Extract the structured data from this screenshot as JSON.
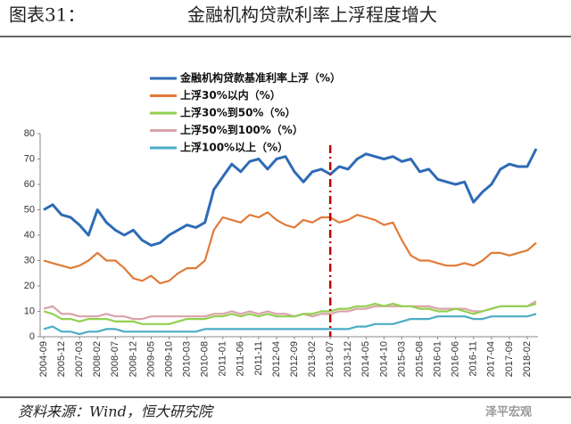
{
  "header": {
    "label": "图表31：",
    "title": "金融机构贷款利率上浮程度增大"
  },
  "footer": {
    "source": "资料来源：Wind，恒大研究院",
    "watermark": "泽平宏观"
  },
  "chart_data": {
    "type": "line",
    "categories": [
      "2004-09",
      null,
      "2005-12",
      null,
      "2007-03",
      null,
      "2008-02",
      null,
      "2008-07",
      null,
      "2008-12",
      null,
      "2009-05",
      null,
      "2009-10",
      null,
      "2010-03",
      null,
      "2010-08",
      null,
      "2011-01",
      null,
      "2011-06",
      null,
      "2011-11",
      null,
      "2012-04",
      null,
      "2012-09",
      null,
      "2013-02",
      null,
      "2013-07",
      null,
      "2013-12",
      null,
      "2014-05",
      null,
      "2014-10",
      null,
      "2015-03",
      null,
      "2015-08",
      null,
      "2016-01",
      null,
      "2016-06",
      null,
      "2016-11",
      null,
      "2017-04",
      null,
      "2017-09",
      null,
      "2018-02",
      null
    ],
    "series": [
      {
        "name": "金融机构贷款基准利率上浮（%）",
        "color": "#2e6bb5",
        "values": [
          50,
          52,
          48,
          47,
          44,
          40,
          50,
          45,
          42,
          40,
          42,
          38,
          36,
          37,
          40,
          42,
          44,
          43,
          45,
          58,
          63,
          68,
          65,
          69,
          70,
          66,
          70,
          71,
          65,
          61,
          65,
          66,
          64,
          67,
          66,
          70,
          72,
          71,
          70,
          71,
          69,
          70,
          65,
          66,
          62,
          61,
          60,
          61,
          53,
          57,
          60,
          66,
          68,
          67,
          67,
          74
        ]
      },
      {
        "name": "上浮30%以内（%）",
        "color": "#e07b39",
        "values": [
          30,
          29,
          28,
          27,
          28,
          30,
          33,
          30,
          30,
          27,
          23,
          22,
          24,
          21,
          22,
          25,
          27,
          27,
          30,
          42,
          47,
          46,
          45,
          48,
          47,
          49,
          46,
          44,
          43,
          46,
          45,
          47,
          47,
          45,
          46,
          48,
          47,
          46,
          44,
          45,
          38,
          32,
          30,
          30,
          29,
          28,
          28,
          29,
          28,
          30,
          33,
          33,
          32,
          33,
          34,
          37
        ]
      },
      {
        "name": "上浮30%到50%（%）",
        "color": "#92d050",
        "values": [
          10,
          9,
          7,
          7,
          6,
          7,
          7,
          7,
          6,
          6,
          6,
          5,
          5,
          5,
          5,
          6,
          7,
          7,
          7,
          8,
          8,
          9,
          8,
          9,
          8,
          9,
          8,
          8,
          8,
          9,
          9,
          10,
          10,
          11,
          11,
          12,
          12,
          13,
          12,
          13,
          12,
          12,
          11,
          11,
          10,
          10,
          11,
          10,
          9,
          10,
          11,
          12,
          12,
          12,
          12,
          13
        ]
      },
      {
        "name": "上浮50%到100%（%）",
        "color": "#d9a3a9",
        "values": [
          11,
          12,
          9,
          9,
          8,
          8,
          8,
          9,
          8,
          8,
          7,
          7,
          8,
          8,
          8,
          8,
          8,
          8,
          8,
          9,
          9,
          10,
          9,
          10,
          9,
          10,
          9,
          9,
          8,
          9,
          8,
          9,
          9,
          10,
          10,
          11,
          11,
          12,
          12,
          12,
          12,
          12,
          12,
          12,
          11,
          11,
          11,
          11,
          10,
          10,
          11,
          12,
          12,
          12,
          12,
          14
        ]
      },
      {
        "name": "上浮100%以上（%）",
        "color": "#4bacc6",
        "values": [
          3,
          4,
          2,
          2,
          1,
          2,
          2,
          3,
          3,
          2,
          2,
          2,
          2,
          2,
          2,
          2,
          2,
          2,
          3,
          3,
          3,
          3,
          3,
          3,
          3,
          3,
          3,
          3,
          3,
          3,
          3,
          3,
          3,
          3,
          3,
          4,
          4,
          5,
          5,
          5,
          6,
          7,
          7,
          7,
          8,
          8,
          8,
          8,
          7,
          7,
          8,
          8,
          8,
          8,
          8,
          9
        ]
      }
    ],
    "reference_line": {
      "at": "2013-07",
      "color": "#c00000"
    },
    "ylim": [
      0,
      80
    ],
    "yticks": [
      0,
      10,
      20,
      30,
      40,
      50,
      60,
      70,
      80
    ],
    "grid": false
  }
}
